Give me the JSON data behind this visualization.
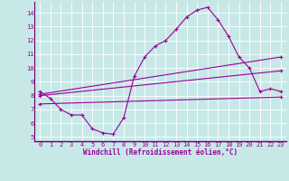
{
  "xlabel": "Windchill (Refroidissement éolien,°C)",
  "bg_color": "#c8e8e8",
  "line_color": "#990099",
  "grid_color": "#ffffff",
  "spine_color": "#660066",
  "xlim": [
    -0.5,
    23.5
  ],
  "ylim": [
    4.7,
    14.8
  ],
  "yticks": [
    5,
    6,
    7,
    8,
    9,
    10,
    11,
    12,
    13,
    14
  ],
  "xticks": [
    0,
    1,
    2,
    3,
    4,
    5,
    6,
    7,
    8,
    9,
    10,
    11,
    12,
    13,
    14,
    15,
    16,
    17,
    18,
    19,
    20,
    21,
    22,
    23
  ],
  "line1_x": [
    0,
    1,
    2,
    3,
    4,
    5,
    6,
    7,
    8,
    9,
    10,
    11,
    12,
    13,
    14,
    15,
    16,
    17,
    18,
    19,
    20,
    21,
    22,
    23
  ],
  "line1_y": [
    8.3,
    7.8,
    7.0,
    6.6,
    6.6,
    5.6,
    5.3,
    5.2,
    6.4,
    9.4,
    10.8,
    11.6,
    12.0,
    12.8,
    13.7,
    14.2,
    14.4,
    13.5,
    12.3,
    10.8,
    10.0,
    8.3,
    8.5,
    8.3
  ],
  "line2_x": [
    0,
    23
  ],
  "line2_y": [
    8.1,
    10.8
  ],
  "line3_x": [
    0,
    23
  ],
  "line3_y": [
    8.0,
    9.8
  ],
  "line4_x": [
    0,
    23
  ],
  "line4_y": [
    7.4,
    7.9
  ],
  "tick_fontsize": 5.0,
  "xlabel_fontsize": 5.5
}
